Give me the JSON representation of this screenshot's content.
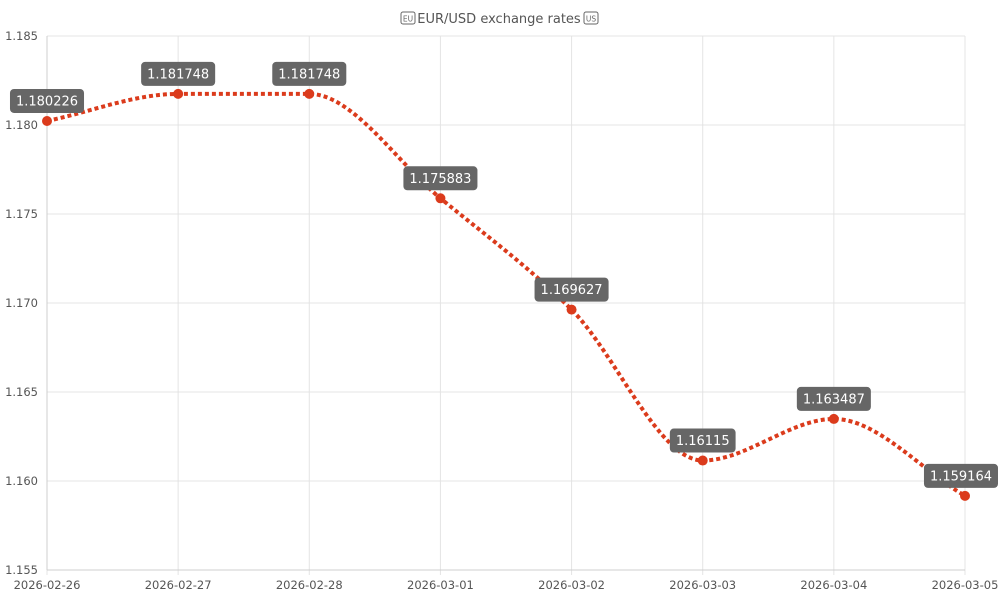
{
  "chart_data": {
    "type": "line",
    "title": "EUR/USD exchange rates",
    "title_icons": [
      "eu-flag-icon",
      "us-flag-icon"
    ],
    "categories": [
      "2026-02-26",
      "2026-02-27",
      "2026-02-28",
      "2026-03-01",
      "2026-03-02",
      "2026-03-03",
      "2026-03-04",
      "2026-03-05"
    ],
    "series": [
      {
        "values": [
          1.180226,
          1.181748,
          1.181748,
          1.175883,
          1.169627,
          1.16115,
          1.163487,
          1.159164
        ],
        "color": "#db3b1c",
        "line_style": "dotted",
        "smooth": true
      }
    ],
    "data_labels": [
      "1.180226",
      "1.181748",
      "1.181748",
      "1.175883",
      "1.169627",
      "1.16115",
      "1.163487",
      "1.159164"
    ],
    "y_ticks": [
      "1.155",
      "1.160",
      "1.165",
      "1.170",
      "1.175",
      "1.180",
      "1.185"
    ],
    "ylim": [
      1.155,
      1.185
    ],
    "xlabel": "",
    "ylabel": "",
    "grid": true,
    "legend": "none",
    "label_bg_color": "#666666"
  }
}
